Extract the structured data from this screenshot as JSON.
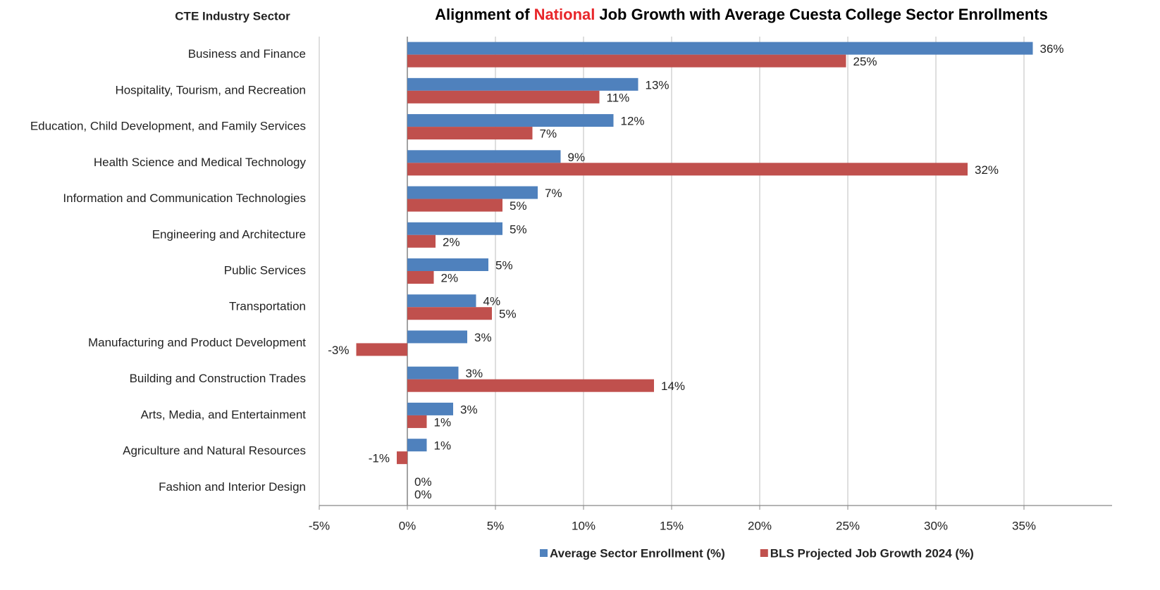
{
  "chart_data": {
    "type": "hbar",
    "title": [
      {
        "text": "Alignment of",
        "color": "#000000"
      },
      {
        "text": "National",
        "color": "#e8262a"
      },
      {
        "text": "Job Growth with Average Cuesta College Sector Enrollments",
        "color": "#000000"
      }
    ],
    "y_axis_label": "CTE Industry Sector",
    "categories": [
      "Business and Finance",
      "Hospitality, Tourism, and Recreation",
      "Education, Child Development, and Family Services",
      "Health Science and Medical Technology",
      "Information and Communication Technologies",
      "Engineering and Architecture",
      "Public Services",
      "Transportation",
      "Manufacturing and Product Development",
      "Building and Construction Trades",
      "Arts, Media, and Entertainment",
      "Agriculture and Natural Resources",
      "Fashion and Interior Design"
    ],
    "series": [
      {
        "name": "Average Sector Enrollment (%)",
        "color": "#4f81bd",
        "values": [
          35.5,
          13.1,
          11.7,
          8.7,
          7.4,
          5.4,
          4.6,
          3.9,
          3.4,
          2.9,
          2.6,
          1.1,
          0
        ],
        "value_labels": [
          "36%",
          "13%",
          "12%",
          "9%",
          "7%",
          "5%",
          "5%",
          "4%",
          "3%",
          "3%",
          "3%",
          "1%",
          "0%"
        ]
      },
      {
        "name": "BLS Projected Job Growth 2024 (%)",
        "color": "#c0504d",
        "values": [
          24.9,
          10.9,
          7.1,
          31.8,
          5.4,
          1.6,
          1.5,
          4.8,
          -2.9,
          14.0,
          1.1,
          -0.6,
          0
        ],
        "value_labels": [
          "25%",
          "11%",
          "7%",
          "32%",
          "5%",
          "2%",
          "2%",
          "5%",
          "-3%",
          "14%",
          "1%",
          "-1%",
          "0%"
        ]
      }
    ],
    "xlim": [
      -5,
      40
    ],
    "xticks": [
      {
        "value": -5,
        "label": "-5%"
      },
      {
        "value": 0,
        "label": "0%"
      },
      {
        "value": 5,
        "label": "5%"
      },
      {
        "value": 10,
        "label": "10%"
      },
      {
        "value": 15,
        "label": "15%"
      },
      {
        "value": 20,
        "label": "20%"
      },
      {
        "value": 25,
        "label": "25%"
      },
      {
        "value": 30,
        "label": "30%"
      },
      {
        "value": 35,
        "label": "35%"
      }
    ],
    "grid": true,
    "legend": "bottom"
  }
}
